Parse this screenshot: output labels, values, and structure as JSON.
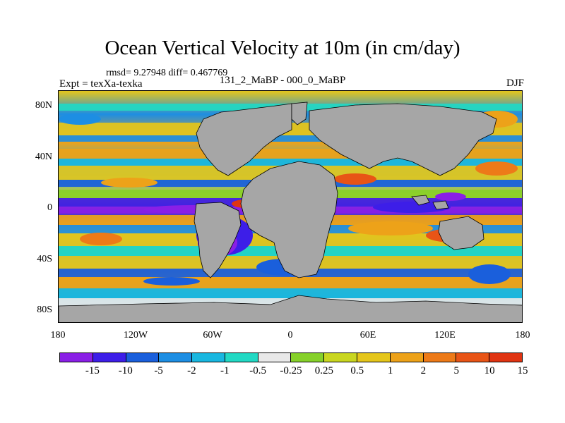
{
  "header": {
    "title": "Ocean Vertical Velocity at 10m (in cm/day)",
    "stats": "rmsd= 9.27948 diff= 0.467769",
    "experiment": "Expt = texXa-texka",
    "comparison": "131_2_MaBP - 000_0_MaBP",
    "season": "DJF"
  },
  "axes": {
    "lat_labels": [
      "80N",
      "40N",
      "0",
      "40S",
      "80S"
    ],
    "lon_labels": [
      "180",
      "120W",
      "60W",
      "0",
      "60E",
      "120E",
      "180"
    ]
  },
  "colorbar": {
    "colors": [
      "#8a1fe6",
      "#3d1ee8",
      "#1a5fdc",
      "#1d8ee3",
      "#19b7e0",
      "#22d9c4",
      "#e9e9e9",
      "#86d12a",
      "#c9d620",
      "#e5c61b",
      "#eda219",
      "#ed7a18",
      "#e85416",
      "#e03412"
    ],
    "labels": [
      "-15",
      "-10",
      "-5",
      "-2",
      "-1",
      "-0.5",
      "-0.25",
      "0.25",
      "0.5",
      "1",
      "2",
      "5",
      "10",
      "15"
    ]
  },
  "map": {
    "land_color": "#a6a6a6",
    "coastline_color": "#000000"
  }
}
